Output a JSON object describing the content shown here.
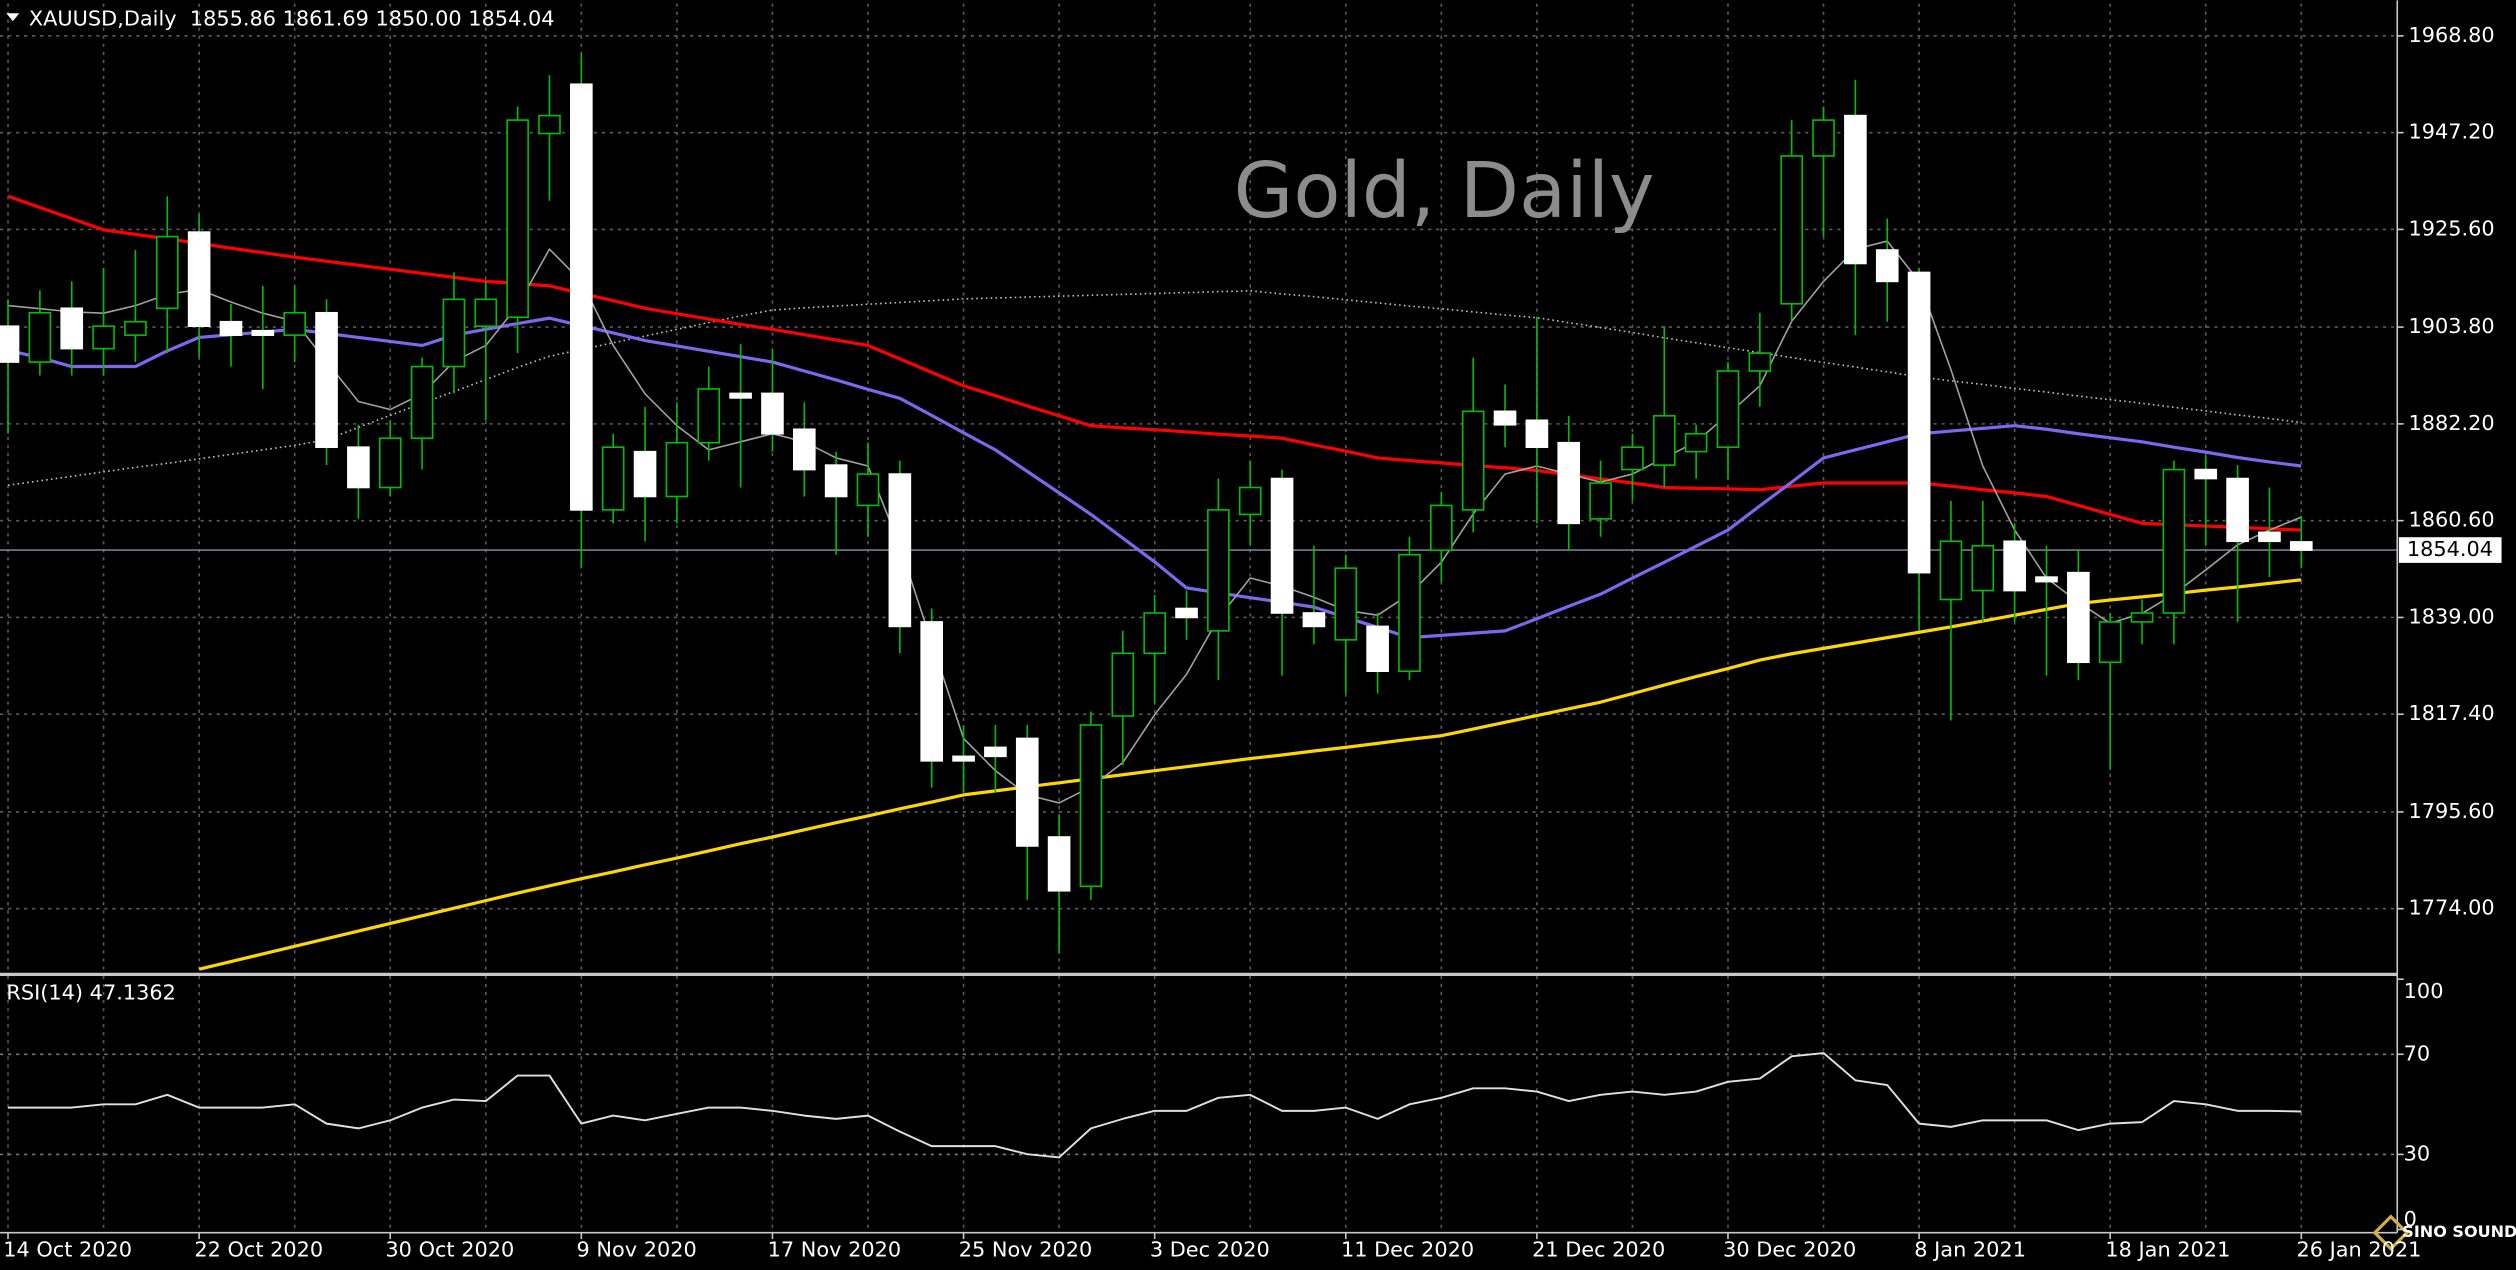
{
  "chart_data": {
    "type": "candlestick",
    "header": "XAUUSD,Daily  1855.86 1861.69 1850.00 1854.04",
    "watermark": "Gold, Daily",
    "logo_text": "SINO SOUND",
    "categories": [
      "14 Oct 2020",
      null,
      null,
      null,
      null,
      null,
      "22 Oct 2020",
      null,
      null,
      null,
      null,
      null,
      "30 Oct 2020",
      null,
      null,
      null,
      null,
      null,
      "9 Nov 2020",
      null,
      null,
      null,
      null,
      null,
      "17 Nov 2020",
      null,
      null,
      null,
      null,
      null,
      "25 Nov 2020",
      null,
      null,
      null,
      null,
      null,
      "3 Dec 2020",
      null,
      null,
      null,
      null,
      null,
      "11 Dec 2020",
      null,
      null,
      null,
      null,
      null,
      "21 Dec 2020",
      null,
      null,
      null,
      null,
      null,
      "30 Dec 2020",
      null,
      null,
      null,
      null,
      null,
      "8 Jan 2021",
      null,
      null,
      null,
      null,
      null,
      "18 Jan 2021",
      null,
      null,
      null,
      null,
      null,
      "26 Jan 2021"
    ],
    "open": [
      1904,
      1896,
      1908,
      1899,
      1902,
      1908,
      1925,
      1905,
      1903,
      1902,
      1907,
      1877,
      1868,
      1879,
      1895,
      1904,
      1906,
      1947,
      1958,
      1863,
      1876,
      1866,
      1878,
      1889,
      1889,
      1881,
      1873,
      1864,
      1871,
      1838,
      1808,
      1810,
      1812,
      1790,
      1779,
      1817,
      1831,
      1841,
      1836,
      1862,
      1870,
      1840,
      1834,
      1837,
      1827,
      1854,
      1863,
      1885,
      1883,
      1878,
      1861,
      1872,
      1873,
      1876,
      1877,
      1894,
      1909,
      1942,
      1951,
      1921,
      1916,
      1843,
      1845,
      1856,
      1848,
      1849,
      1829,
      1838,
      1840,
      1872,
      1870,
      1858,
      1855.86
    ],
    "high": [
      1910,
      1912,
      1914,
      1917,
      1921,
      1933,
      1929,
      1909,
      1913,
      1913,
      1910,
      1882,
      1883,
      1897,
      1916,
      1914,
      1953,
      1960,
      1965,
      1880,
      1886,
      1887,
      1895,
      1900,
      1899,
      1887,
      1876,
      1878,
      1874,
      1841,
      1815,
      1815,
      1815,
      1795,
      1818,
      1836,
      1844,
      1845,
      1870,
      1874,
      1872,
      1855,
      1853,
      1840,
      1857,
      1867,
      1897,
      1891,
      1906,
      1884,
      1874,
      1880,
      1904,
      1882,
      1896,
      1907,
      1950,
      1953,
      1959,
      1928,
      1917,
      1865,
      1865,
      1860,
      1855,
      1854,
      1840,
      1843,
      1874,
      1875,
      1873,
      1868,
      1861.69
    ],
    "low": [
      1880,
      1893,
      1893,
      1893,
      1896,
      1898,
      1897,
      1895,
      1890,
      1896,
      1873,
      1861,
      1866,
      1872,
      1889,
      1883,
      1898,
      1932,
      1850,
      1860,
      1856,
      1860,
      1874,
      1868,
      1876,
      1866,
      1853,
      1857,
      1831,
      1801,
      1800,
      1800,
      1776,
      1764,
      1776,
      1806,
      1820,
      1834,
      1825,
      1855,
      1826,
      1833,
      1822,
      1822,
      1825,
      1847,
      1858,
      1877,
      1860,
      1854,
      1857,
      1865,
      1868,
      1870,
      1870,
      1886,
      1905,
      1924,
      1902,
      1905,
      1836,
      1816,
      1838,
      1838,
      1826,
      1825,
      1805,
      1833,
      1833,
      1855,
      1838,
      1848,
      1850
    ],
    "close": [
      1896,
      1907,
      1899,
      1904,
      1905,
      1924,
      1904,
      1902,
      1902,
      1907,
      1877,
      1868,
      1879,
      1895,
      1910,
      1910,
      1950,
      1951,
      1863,
      1877,
      1866,
      1878,
      1890,
      1888,
      1880,
      1872,
      1866,
      1871,
      1837,
      1807,
      1807,
      1808,
      1788,
      1778,
      1815,
      1831,
      1840,
      1839,
      1863,
      1868,
      1840,
      1837,
      1850,
      1827,
      1853,
      1864,
      1885,
      1882,
      1877,
      1860,
      1869,
      1877,
      1884,
      1880,
      1894,
      1898,
      1942,
      1950,
      1918,
      1914,
      1849,
      1856,
      1855,
      1845,
      1847,
      1829,
      1838,
      1840,
      1872,
      1870,
      1856,
      1856,
      1854.04
    ],
    "bull_color": "#000000",
    "bear_color": "#ffffff",
    "wick_color": "#00c000",
    "ylim": [
      1759.7,
      1976.0
    ],
    "yticks": [
      {
        "value": 1968.8,
        "label": "1968.80"
      },
      {
        "value": 1947.2,
        "label": "1947.20"
      },
      {
        "value": 1925.6,
        "label": "1925.60"
      },
      {
        "value": 1903.8,
        "label": "1903.80"
      },
      {
        "value": 1882.2,
        "label": "1882.20"
      },
      {
        "value": 1860.6,
        "label": "1860.60"
      },
      {
        "value": 1839,
        "label": "1839.00"
      },
      {
        "value": 1817.4,
        "label": "1817.40"
      },
      {
        "value": 1795.6,
        "label": "1795.60"
      },
      {
        "value": 1774,
        "label": "1774.00"
      }
    ],
    "grid": true,
    "last_price": 1854.04,
    "lines": [
      {
        "color": "#c0c0c0",
        "style": "dotted",
        "values": [
          1868.5,
          1869.5,
          1870.5,
          1871.5,
          1872.5,
          1873.4,
          1874.4,
          1875.4,
          1876.4,
          1877.4,
          1878.7,
          1881.4,
          1884.1,
          1886.8,
          1889.4,
          1892.1,
          1894.8,
          1897.3,
          1898.8,
          1900.3,
          1901.8,
          1903.3,
          1904.8,
          1906.3,
          1907.6,
          1908.1,
          1908.5,
          1908.9,
          1909.3,
          1909.7,
          1910.1,
          1910.3,
          1910.5,
          1910.7,
          1910.9,
          1911.1,
          1911.3,
          1911.5,
          1911.7,
          1911.9,
          1911.2,
          1910.6,
          1909.9,
          1909.2,
          1908.5,
          1907.9,
          1907.2,
          1906.5,
          1905.9,
          1904.8,
          1903.7,
          1902.6,
          1901.4,
          1900.3,
          1899.2,
          1898.1,
          1897,
          1895.9,
          1894.9,
          1893.8,
          1892.7,
          1891.8,
          1891,
          1890.1,
          1889.3,
          1888.4,
          1887.6,
          1886.8,
          1885.9,
          1885.1,
          1884.2,
          1883.4,
          1882.5
        ]
      },
      {
        "color": "#ff0000",
        "style": "solid",
        "values": [
          1933,
          1930.5,
          1928,
          1925.5,
          1924.5,
          1923.5,
          1922.5,
          1921.4,
          1920.4,
          1919.4,
          1918.5,
          1917.6,
          1916.7,
          1915.8,
          1914.9,
          1914,
          1913.5,
          1913,
          1911.3,
          1909.7,
          1908,
          1906.8,
          1905.6,
          1904.4,
          1903.3,
          1902.1,
          1900.9,
          1899.7,
          1896.7,
          1893.7,
          1890.7,
          1888.5,
          1886.2,
          1884,
          1881.8,
          1881.3,
          1880.9,
          1880.4,
          1879.9,
          1879.5,
          1879,
          1877.5,
          1876.1,
          1874.6,
          1874,
          1873.5,
          1872.9,
          1872.4,
          1871.8,
          1870.9,
          1869.9,
          1869,
          1868,
          1867.8,
          1867.7,
          1867.5,
          1868.3,
          1869,
          1869,
          1869,
          1869,
          1868.3,
          1867.5,
          1866.8,
          1866,
          1864,
          1862,
          1860,
          1859.7,
          1859.4,
          1859.1,
          1858.8,
          1858.5
        ]
      },
      {
        "color": "#7b68ee",
        "style": "solid",
        "values": [
          1898.6,
          1897,
          1895,
          1895,
          1895,
          1898.5,
          1901.5,
          1902.1,
          1902.7,
          1903.3,
          1902.4,
          1901.5,
          1900.6,
          1899.7,
          1902,
          1903.3,
          1904.6,
          1905.8,
          1904.1,
          1902.5,
          1900.8,
          1899.6,
          1898.4,
          1897.2,
          1896,
          1894,
          1892,
          1889.9,
          1887.9,
          1884.1,
          1880.2,
          1876.4,
          1871.6,
          1866.8,
          1862,
          1856.7,
          1851.4,
          1845.6,
          1844.5,
          1843.4,
          1842.4,
          1841.3,
          1839,
          1836.8,
          1834.5,
          1835,
          1835.5,
          1836,
          1838.7,
          1841.5,
          1844.2,
          1847.8,
          1851.3,
          1854.9,
          1858.5,
          1863.9,
          1869.2,
          1874.6,
          1876.4,
          1878.2,
          1880,
          1880.6,
          1881.2,
          1881.8,
          1881,
          1880,
          1879.1,
          1878.2,
          1877,
          1875.9,
          1874.7,
          1873.7,
          1872.8
        ]
      },
      {
        "color": "#ffd700",
        "style": "solid",
        "values": [
          null,
          null,
          null,
          null,
          null,
          null,
          1760.5,
          1762.2,
          1763.9,
          1765.6,
          1767.3,
          1769,
          1770.7,
          1772.4,
          1774.1,
          1775.8,
          1777.5,
          1779.1,
          1780.7,
          1782.2,
          1783.8,
          1785.3,
          1786.9,
          1788.5,
          1790,
          1791.6,
          1793.2,
          1794.7,
          1796.3,
          1797.8,
          1799.4,
          1800.3,
          1801.2,
          1802.1,
          1803,
          1803.9,
          1804.8,
          1805.7,
          1806.6,
          1807.5,
          1808.3,
          1809.2,
          1810,
          1810.9,
          1811.8,
          1812.6,
          1814.1,
          1815.6,
          1817.1,
          1818.6,
          1820.1,
          1822,
          1823.9,
          1825.8,
          1827.6,
          1829.5,
          1830.9,
          1832.1,
          1833.3,
          1834.5,
          1835.7,
          1836.9,
          1838.2,
          1839.5,
          1840.8,
          1842.1,
          1842.9,
          1843.6,
          1844.3,
          1845.1,
          1845.8,
          1846.6,
          1847.4
        ]
      },
      {
        "color": "#a0a0a0",
        "style": "thin",
        "values": [
          1908.6,
          1907.9,
          1907.2,
          1906.9,
          1908.6,
          1911.1,
          1912.2,
          1909.4,
          1906.9,
          1905.1,
          1896.1,
          1887.2,
          1885.4,
          1888.9,
          1896.1,
          1899.7,
          1908.6,
          1921.2,
          1914,
          1899.7,
          1888.9,
          1881.8,
          1876.4,
          1878.2,
          1880,
          1878.2,
          1874.6,
          1872.8,
          1854.9,
          1833.4,
          1812,
          1804.8,
          1799.4,
          1797.6,
          1801.2,
          1806.6,
          1817.3,
          1826.3,
          1838.8,
          1847.8,
          1846,
          1843.5,
          1840.6,
          1839.5,
          1844.2,
          1851.3,
          1862.1,
          1871,
          1872.8,
          1871,
          1869.2,
          1871,
          1874.6,
          1878.2,
          1884.3,
          1890.7,
          1905.1,
          1914,
          1921.2,
          1923,
          1914,
          1894.3,
          1872.8,
          1858.5,
          1847.8,
          1842.4,
          1837.7,
          1839.9,
          1844.2,
          1849.6,
          1855.2,
          1858.5,
          1861.4
        ]
      }
    ],
    "rsi": {
      "title": "RSI(14) 47.1362",
      "color": "#e0e0e0",
      "ylim": [
        0,
        100
      ],
      "yticks": [
        100,
        70,
        30,
        0
      ],
      "values": [
        48.7,
        48.7,
        48.7,
        50,
        50,
        53.8,
        48.7,
        48.7,
        48.7,
        50,
        42.3,
        40.4,
        43.6,
        48.7,
        51.9,
        51.3,
        61.5,
        61.5,
        42.3,
        45.5,
        43.6,
        46.2,
        48.7,
        48.7,
        47.4,
        45.5,
        44.2,
        45.5,
        39.1,
        33.3,
        33.3,
        33.3,
        30.1,
        28.8,
        40.4,
        44.2,
        47.4,
        47.4,
        52.6,
        53.8,
        47.4,
        47.4,
        48.7,
        44.2,
        50,
        52.6,
        56.4,
        56.4,
        55.1,
        51.3,
        53.8,
        55.1,
        53.8,
        55.1,
        59,
        60.3,
        69.2,
        70.5,
        59.6,
        57.7,
        42.3,
        41,
        43.6,
        43.6,
        43.6,
        39.7,
        42.3,
        42.9,
        51.3,
        50,
        47.4,
        47.4,
        47.1362
      ]
    }
  }
}
